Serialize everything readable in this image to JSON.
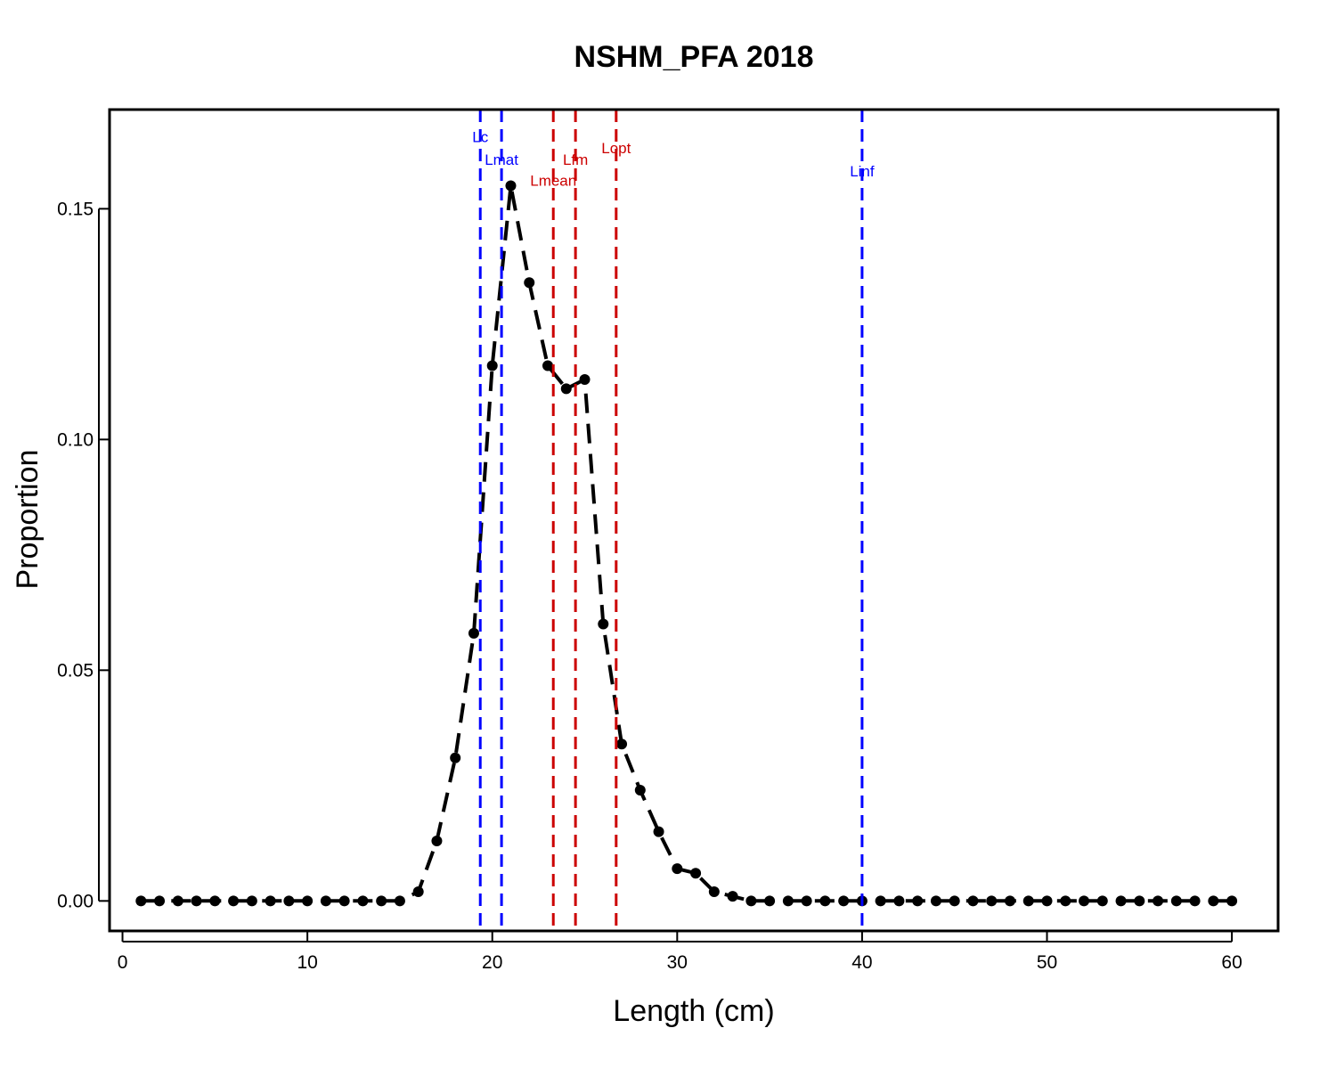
{
  "chart_data": {
    "type": "line",
    "title": "NSHM_PFA 2018",
    "xlabel": "Length (cm)",
    "ylabel": "Proportion",
    "xlim": [
      -0.7,
      62.5
    ],
    "ylim": [
      -0.0065,
      0.1715
    ],
    "x_ticks": [
      0,
      10,
      20,
      30,
      40,
      50,
      60
    ],
    "x_tick_labels": [
      "0",
      "10",
      "20",
      "30",
      "40",
      "50",
      "60"
    ],
    "y_ticks": [
      0.0,
      0.05,
      0.1,
      0.15
    ],
    "y_tick_labels": [
      "0.00",
      "0.05",
      "0.10",
      "0.15"
    ],
    "grid": false,
    "series": [
      {
        "color": "#000000",
        "line_style": "dashed",
        "marker": "circle",
        "x": [
          1,
          2,
          3,
          4,
          5,
          6,
          7,
          8,
          9,
          10,
          11,
          12,
          13,
          14,
          15,
          16,
          17,
          18,
          19,
          20,
          21,
          22,
          23,
          24,
          25,
          26,
          27,
          28,
          29,
          30,
          31,
          32,
          33,
          34,
          35,
          36,
          37,
          38,
          39,
          40,
          41,
          42,
          43,
          44,
          45,
          46,
          47,
          48,
          49,
          50,
          51,
          52,
          53,
          54,
          55,
          56,
          57,
          58,
          59,
          60
        ],
        "y": [
          0,
          0,
          0,
          0,
          0,
          0,
          0,
          0,
          0,
          0,
          0,
          0,
          0,
          0,
          0,
          0.002,
          0.013,
          0.031,
          0.058,
          0.116,
          0.155,
          0.134,
          0.116,
          0.111,
          0.113,
          0.06,
          0.034,
          0.024,
          0.015,
          0.007,
          0.006,
          0.002,
          0.001,
          0,
          0,
          0,
          0,
          0,
          0,
          0,
          0,
          0,
          0,
          0,
          0,
          0,
          0,
          0,
          0,
          0,
          0,
          0,
          0,
          0,
          0,
          0,
          0,
          0,
          0,
          0
        ]
      }
    ],
    "reference_lines": [
      {
        "label": "Lc",
        "x": 19.35,
        "color": "#0000ff",
        "label_y": 0.1645
      },
      {
        "label": "Lmat",
        "x": 20.5,
        "color": "#0000ff",
        "label_y": 0.1595
      },
      {
        "label": "Lmean",
        "x": 23.3,
        "color": "#cc0000",
        "label_y": 0.155
      },
      {
        "label": "Lfm",
        "x": 24.5,
        "color": "#cc0000",
        "label_y": 0.1595
      },
      {
        "label": "Lopt",
        "x": 26.7,
        "color": "#cc0000",
        "label_y": 0.162
      },
      {
        "label": "Linf",
        "x": 40.0,
        "color": "#0000ff",
        "label_y": 0.157
      }
    ]
  }
}
